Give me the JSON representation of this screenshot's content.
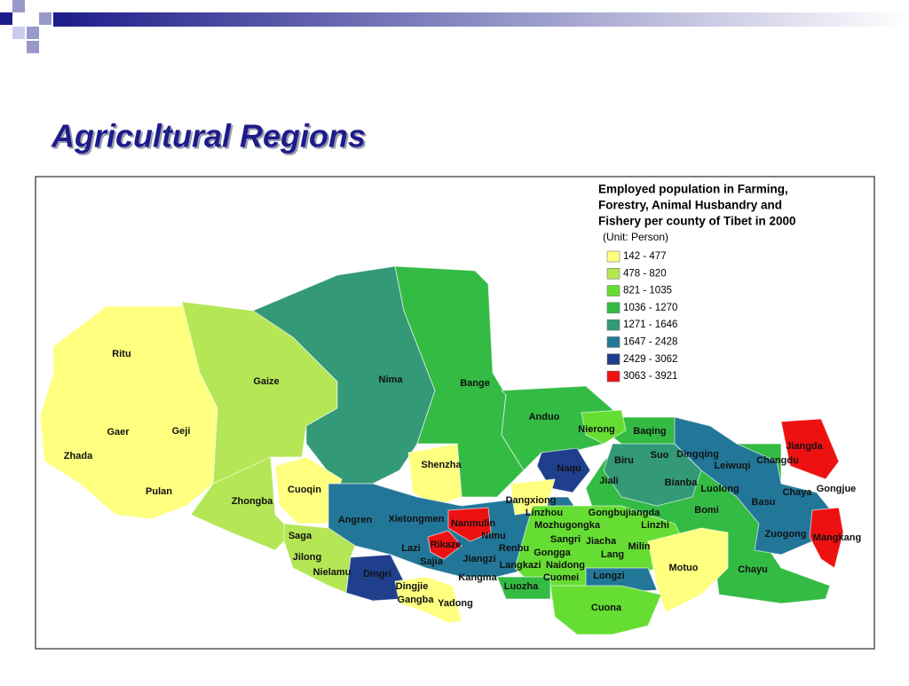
{
  "header": {
    "title": "Agricultural Regions"
  },
  "legend": {
    "title": [
      "Employed population in Farming,",
      "Forestry, Animal Husbandry and",
      "Fishery per county of Tibet in 2000"
    ],
    "unit": "(Unit: Person)",
    "items": [
      {
        "label": "142 - 477",
        "color": "#ffff80"
      },
      {
        "label": "478 - 820",
        "color": "#b5e655"
      },
      {
        "label": "821 - 1035",
        "color": "#66dd33"
      },
      {
        "label": "1036 - 1270",
        "color": "#33bb44"
      },
      {
        "label": "1271 - 1646",
        "color": "#339977"
      },
      {
        "label": "1647 - 2428",
        "color": "#227799"
      },
      {
        "label": "2429 - 3062",
        "color": "#1f3f8c"
      },
      {
        "label": "3063 - 3921",
        "color": "#ee1111"
      }
    ]
  },
  "counties": [
    "Ritu",
    "Gaize",
    "Nima",
    "Bange",
    "Anduo",
    "Nierong",
    "Baqing",
    "Gaer",
    "Geji",
    "Zhada",
    "Shenzha",
    "Naqu",
    "Biru",
    "Suo",
    "Dingqing",
    "Jiangda",
    "Changdu",
    "Leiwuqi",
    "Jiali",
    "Bianba",
    "Luolong",
    "Chaya",
    "Gongjue",
    "Pulan",
    "Cuoqin",
    "Zhongba",
    "Dangxiong",
    "Linzhou",
    "Gongbujiangda",
    "Bomi",
    "Basu",
    "Angren",
    "Xietongmen",
    "Nanmulin",
    "Mozhugongka",
    "Linzhi",
    "Zuogong",
    "Mangkang",
    "Saga",
    "Nimu",
    "Sangri",
    "Jiacha",
    "Milin",
    "Lazi",
    "Rikaze",
    "Renbu",
    "Gongga",
    "Lang",
    "Jilong",
    "Jiangzi",
    "Sajia",
    "Langkazi",
    "Naidong",
    "Motuo",
    "Chayu",
    "Nielamu",
    "Dingri",
    "Kangma",
    "Cuomei",
    "Longzi",
    "Luozha",
    "Dingjie",
    "Gangba",
    "Yadong",
    "Cuona"
  ]
}
